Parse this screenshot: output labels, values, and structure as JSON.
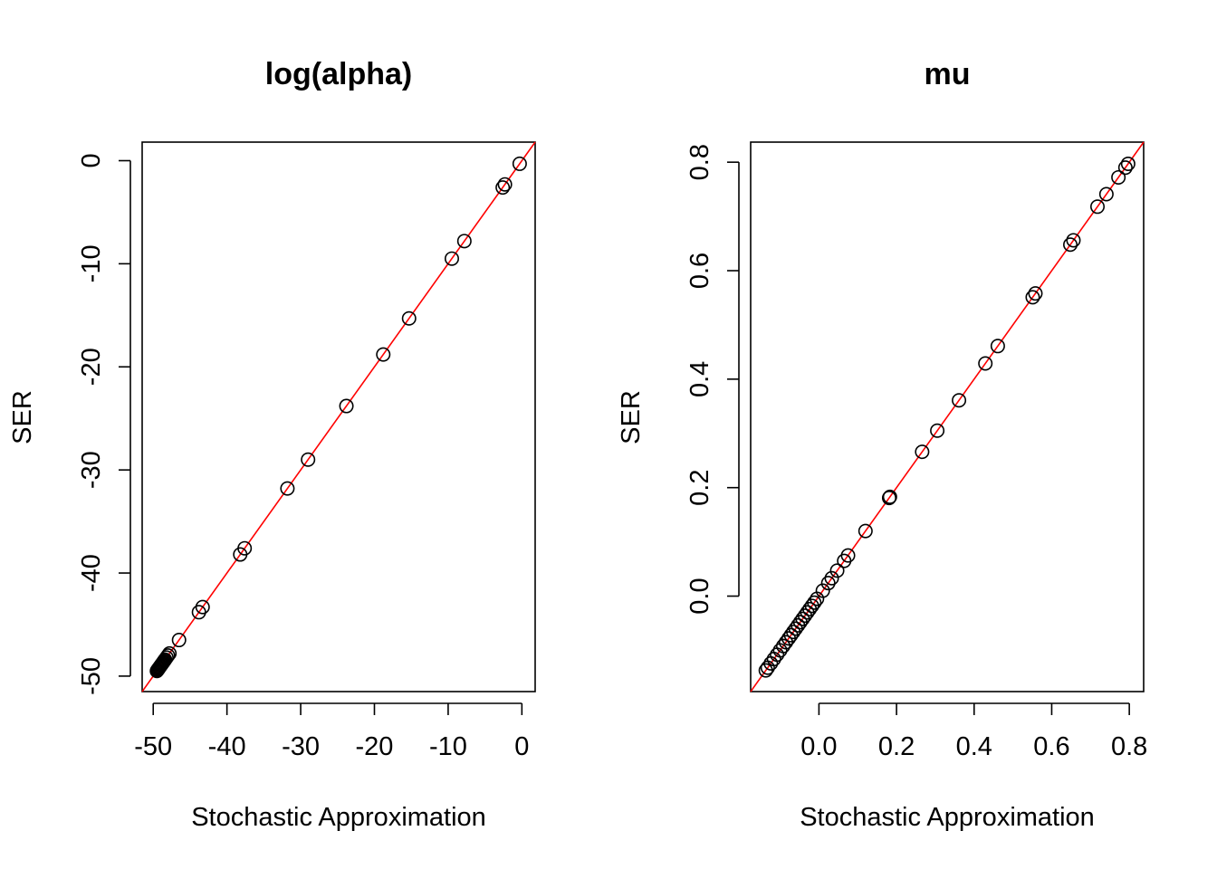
{
  "chart_data": [
    {
      "type": "scatter",
      "title": "log(alpha)",
      "xlabel": "Stochastic Approximation",
      "ylabel": "SER",
      "xlim": [
        -51.5,
        1.8
      ],
      "ylim": [
        -51.5,
        1.8
      ],
      "x_ticks": [
        -50,
        -40,
        -30,
        -20,
        -10,
        0
      ],
      "x_tick_labels": [
        "-50",
        "-40",
        "-30",
        "-20",
        "-10",
        "0"
      ],
      "y_ticks": [
        -50,
        -40,
        -30,
        -20,
        -10,
        0
      ],
      "y_tick_labels": [
        "-50",
        "-40",
        "-30",
        "-20",
        "-10",
        "0"
      ],
      "reference_line": {
        "intercept": 0,
        "slope": 1,
        "color": "#ff0000"
      },
      "grid": false,
      "marker": "open-circle",
      "points": [
        [
          -0.3,
          -0.3
        ],
        [
          -2.3,
          -2.3
        ],
        [
          -2.6,
          -2.6
        ],
        [
          -7.8,
          -7.8
        ],
        [
          -9.5,
          -9.5
        ],
        [
          -15.3,
          -15.3
        ],
        [
          -18.8,
          -18.8
        ],
        [
          -23.8,
          -23.8
        ],
        [
          -29.0,
          -29.0
        ],
        [
          -31.8,
          -31.8
        ],
        [
          -37.6,
          -37.6
        ],
        [
          -38.2,
          -38.2
        ],
        [
          -43.3,
          -43.3
        ],
        [
          -43.8,
          -43.8
        ],
        [
          -46.5,
          -46.5
        ],
        [
          -47.8,
          -47.8
        ],
        [
          -48.0,
          -48.0
        ],
        [
          -48.2,
          -48.2
        ],
        [
          -48.4,
          -48.4
        ],
        [
          -48.5,
          -48.5
        ],
        [
          -48.6,
          -48.6
        ],
        [
          -48.7,
          -48.7
        ],
        [
          -48.8,
          -48.8
        ],
        [
          -48.9,
          -48.9
        ],
        [
          -49.0,
          -49.0
        ],
        [
          -49.1,
          -49.1
        ],
        [
          -49.2,
          -49.2
        ],
        [
          -49.3,
          -49.3
        ],
        [
          -49.4,
          -49.4
        ],
        [
          -49.5,
          -49.5
        ]
      ]
    },
    {
      "type": "scatter",
      "title": "mu",
      "xlabel": "Stochastic Approximation",
      "ylabel": "SER",
      "xlim": [
        -0.176,
        0.837
      ],
      "ylim": [
        -0.176,
        0.837
      ],
      "x_ticks": [
        0.0,
        0.2,
        0.4,
        0.6,
        0.8
      ],
      "x_tick_labels": [
        "0.0",
        "0.2",
        "0.4",
        "0.6",
        "0.8"
      ],
      "y_ticks": [
        0.0,
        0.2,
        0.4,
        0.6,
        0.8
      ],
      "y_tick_labels": [
        "0.0",
        "0.2",
        "0.4",
        "0.6",
        "0.8"
      ],
      "reference_line": {
        "intercept": 0,
        "slope": 1,
        "color": "#ff0000"
      },
      "grid": false,
      "marker": "open-circle",
      "points": [
        [
          0.797,
          0.797
        ],
        [
          0.79,
          0.79
        ],
        [
          0.772,
          0.772
        ],
        [
          0.741,
          0.741
        ],
        [
          0.718,
          0.718
        ],
        [
          0.656,
          0.656
        ],
        [
          0.648,
          0.648
        ],
        [
          0.558,
          0.558
        ],
        [
          0.551,
          0.551
        ],
        [
          0.461,
          0.461
        ],
        [
          0.429,
          0.429
        ],
        [
          0.361,
          0.361
        ],
        [
          0.305,
          0.305
        ],
        [
          0.266,
          0.266
        ],
        [
          0.183,
          0.183
        ],
        [
          0.181,
          0.181
        ],
        [
          0.12,
          0.12
        ],
        [
          0.075,
          0.075
        ],
        [
          0.065,
          0.065
        ],
        [
          0.047,
          0.047
        ],
        [
          0.033,
          0.033
        ],
        [
          0.024,
          0.024
        ],
        [
          0.01,
          0.01
        ],
        [
          -0.005,
          -0.005
        ],
        [
          -0.012,
          -0.012
        ],
        [
          -0.018,
          -0.018
        ],
        [
          -0.024,
          -0.024
        ],
        [
          -0.03,
          -0.03
        ],
        [
          -0.036,
          -0.036
        ],
        [
          -0.042,
          -0.042
        ],
        [
          -0.048,
          -0.048
        ],
        [
          -0.054,
          -0.054
        ],
        [
          -0.06,
          -0.06
        ],
        [
          -0.066,
          -0.066
        ],
        [
          -0.072,
          -0.072
        ],
        [
          -0.078,
          -0.078
        ],
        [
          -0.085,
          -0.085
        ],
        [
          -0.092,
          -0.092
        ],
        [
          -0.1,
          -0.1
        ],
        [
          -0.108,
          -0.108
        ],
        [
          -0.116,
          -0.116
        ],
        [
          -0.124,
          -0.124
        ],
        [
          -0.132,
          -0.132
        ],
        [
          -0.137,
          -0.137
        ]
      ]
    }
  ]
}
